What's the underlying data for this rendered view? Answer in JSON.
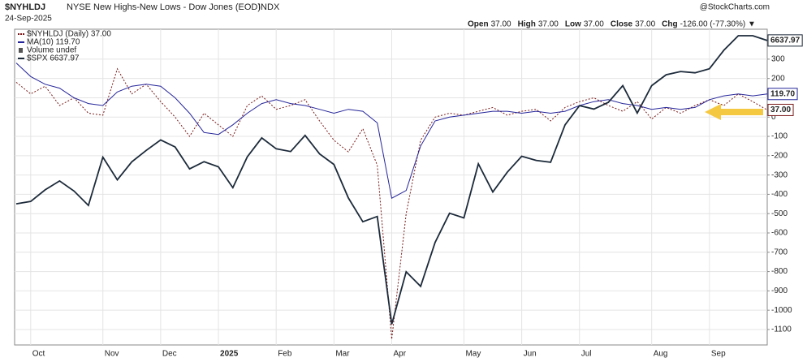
{
  "header": {
    "symbol": "$NYHLDJ",
    "description": "NYSE New Highs-New Lows - Dow Jones (EOD)",
    "exchange": "INDX",
    "date": "24-Sep-2025",
    "source": "@StockCharts.com",
    "quote": [
      {
        "label": "Open",
        "value": "37.00"
      },
      {
        "label": "High",
        "value": "37.00"
      },
      {
        "label": "Low",
        "value": "37.00"
      },
      {
        "label": "Close",
        "value": "37.00"
      },
      {
        "label": "Chg",
        "value": "-126.00 (-77.30%) ▼"
      }
    ]
  },
  "chart_data": {
    "type": "line",
    "categories": [
      null,
      "Oct",
      null,
      null,
      null,
      null,
      "Nov",
      null,
      null,
      null,
      "Dec",
      null,
      null,
      null,
      "2025",
      null,
      null,
      null,
      "Feb",
      null,
      null,
      null,
      "Mar",
      null,
      null,
      null,
      "Apr",
      null,
      null,
      null,
      null,
      "May",
      null,
      null,
      null,
      "Jun",
      null,
      null,
      null,
      "Jul",
      null,
      null,
      null,
      null,
      "Aug",
      null,
      null,
      null,
      "Sep",
      null,
      null,
      null,
      null
    ],
    "ylim": [
      -1180,
      455
    ],
    "yticks": [
      300,
      200,
      100,
      0,
      -100,
      -200,
      -300,
      -400,
      -500,
      -600,
      -700,
      -800,
      -900,
      -1000,
      -1100
    ],
    "y2lim": [
      4960,
      6700
    ],
    "grid": true,
    "extra_legend": "Volume undef",
    "series": [
      {
        "name": "$NYHLDJ (Daily) 37.00",
        "color": "#7a1a1a",
        "dash": true,
        "end_label": "37.00",
        "values": [
          180,
          120,
          160,
          60,
          100,
          20,
          10,
          250,
          120,
          170,
          80,
          0,
          -100,
          20,
          -40,
          -100,
          60,
          110,
          40,
          60,
          90,
          -20,
          -120,
          -180,
          -60,
          -250,
          -1150,
          -500,
          -120,
          0,
          20,
          10,
          30,
          50,
          10,
          30,
          40,
          -20,
          50,
          80,
          100,
          60,
          30,
          80,
          -10,
          50,
          20,
          60,
          90,
          60,
          120,
          80,
          37
        ]
      },
      {
        "name": "MA(10) 119.70",
        "color": "#24249a",
        "dash": false,
        "end_label": "119.70",
        "values": [
          280,
          210,
          170,
          150,
          100,
          70,
          60,
          130,
          160,
          170,
          160,
          100,
          20,
          -80,
          -90,
          -40,
          20,
          70,
          90,
          70,
          60,
          40,
          20,
          40,
          30,
          -30,
          -420,
          -380,
          -150,
          -20,
          0,
          10,
          20,
          30,
          30,
          20,
          30,
          20,
          30,
          60,
          80,
          90,
          70,
          60,
          40,
          50,
          40,
          50,
          90,
          110,
          120,
          110,
          119.7
        ]
      },
      {
        "name": "$SPX 6637.97",
        "color": "#1c2a3a",
        "dash": false,
        "axis": "y2",
        "end_label": "6637.97",
        "values": [
          5738,
          5751,
          5815,
          5864,
          5808,
          5729,
          5995,
          5870,
          5969,
          6032,
          6090,
          6051,
          5930,
          5970,
          5942,
          5827,
          5997,
          6101,
          6041,
          6026,
          6115,
          6013,
          5955,
          5770,
          5639,
          5668,
          5074,
          5363,
          5283,
          5525,
          5686,
          5660,
          5958,
          5803,
          5912,
          6000,
          5977,
          5967,
          6173,
          6279,
          6260,
          6297,
          6389,
          6238,
          6389,
          6449,
          6467,
          6460,
          6482,
          6584,
          6664,
          6664,
          6637.97
        ]
      }
    ]
  }
}
